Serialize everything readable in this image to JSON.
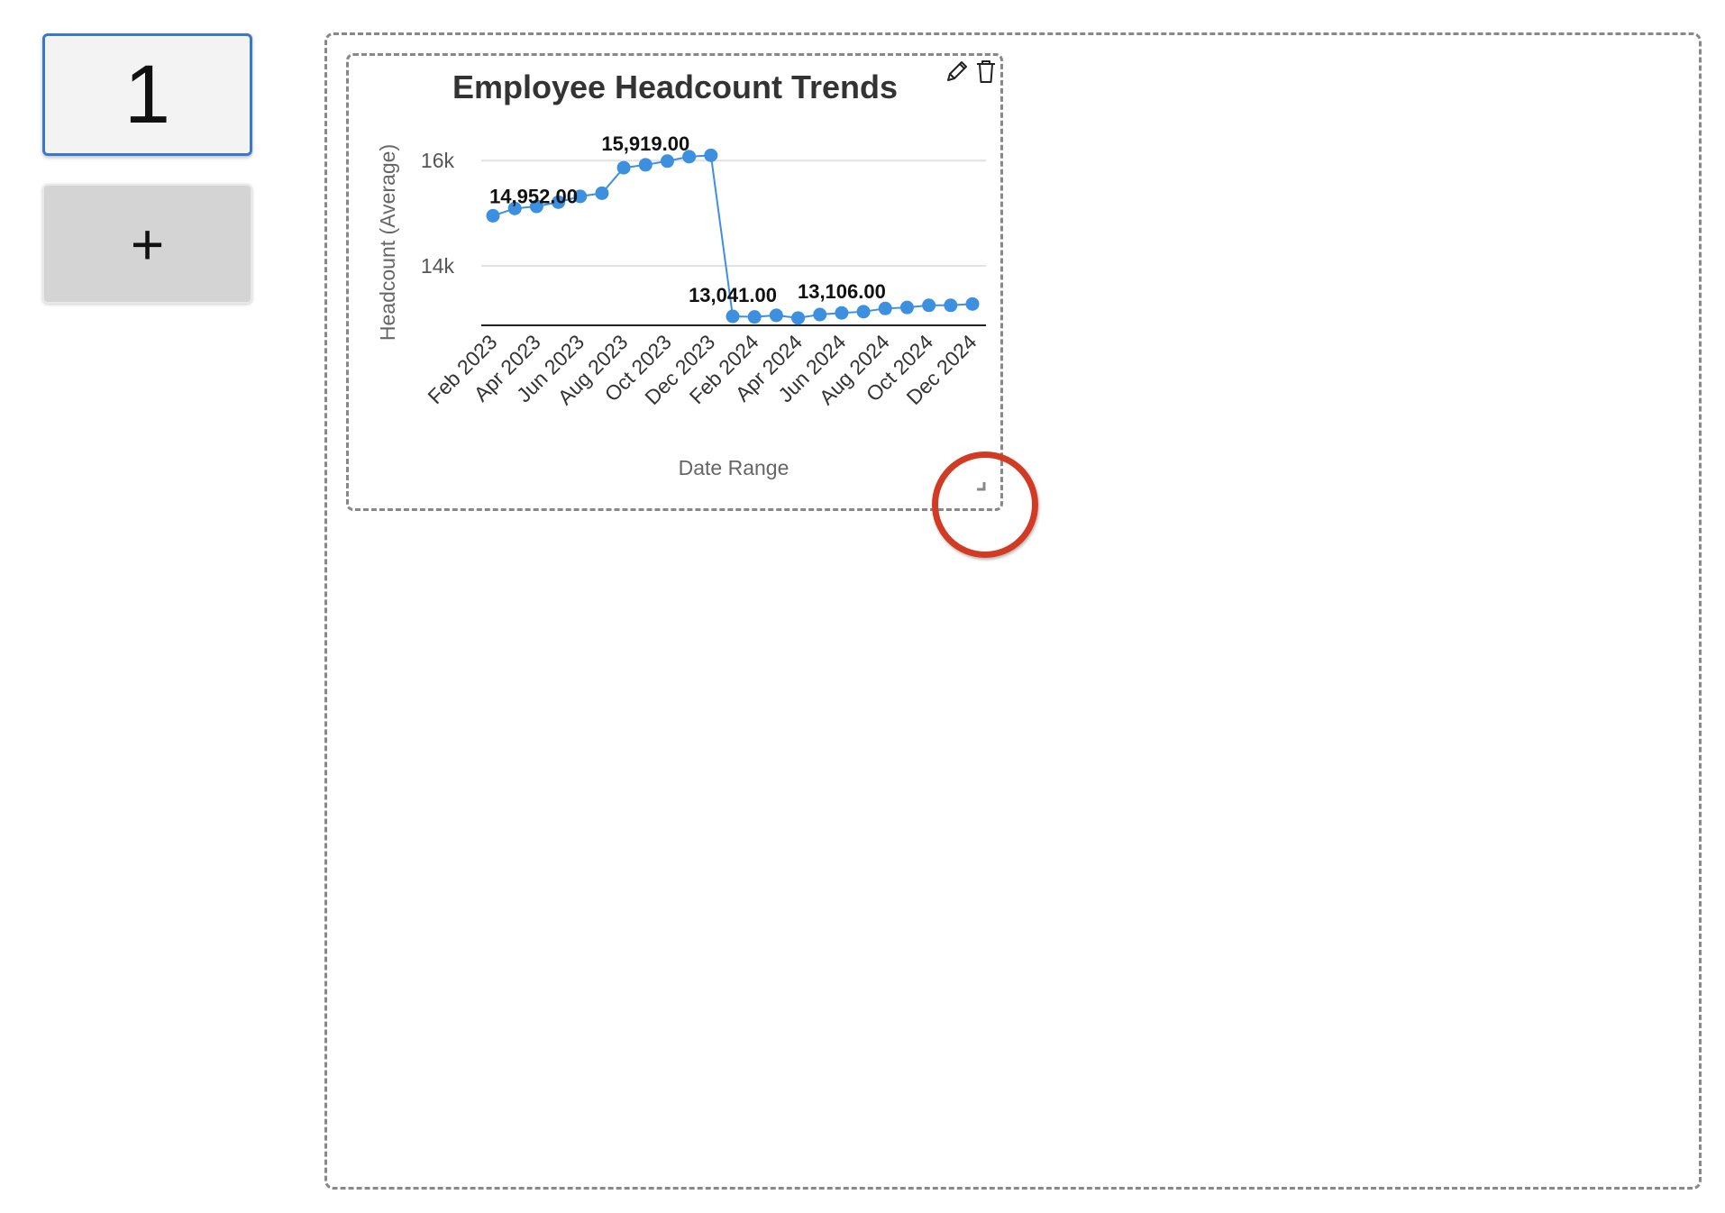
{
  "sidebar": {
    "page_button_label": "1",
    "add_page_label": "+"
  },
  "widget": {
    "edit_icon": "pencil-icon",
    "delete_icon": "trash-icon",
    "resize_icon": "resize-handle-icon"
  },
  "colors": {
    "series": "#3d8fe0",
    "highlight": "#d13b24",
    "active_border": "#3a78cf"
  },
  "chart_data": {
    "type": "line",
    "title": "Employee Headcount Trends",
    "xlabel": "Date Range",
    "ylabel": "Headcount (Average)",
    "x": [
      "Feb 2023",
      "Mar 2023",
      "Apr 2023",
      "May 2023",
      "Jun 2023",
      "Jul 2023",
      "Aug 2023",
      "Sep 2023",
      "Oct 2023",
      "Nov 2023",
      "Dec 2023",
      "Jan 2024",
      "Feb 2024",
      "Mar 2024",
      "Apr 2024",
      "May 2024",
      "Jun 2024",
      "Jul 2024",
      "Aug 2024",
      "Sep 2024",
      "Oct 2024",
      "Nov 2024",
      "Dec 2024"
    ],
    "x_tick_labels": [
      "Feb 2023",
      "Apr 2023",
      "Jun 2023",
      "Aug 2023",
      "Oct 2023",
      "Dec 2023",
      "Feb 2024",
      "Apr 2024",
      "Jun 2024",
      "Aug 2024",
      "Oct 2024",
      "Dec 2024"
    ],
    "values": [
      14952,
      15090,
      15130,
      15210,
      15320,
      15380,
      15865,
      15919,
      15990,
      16075,
      16100,
      13041,
      13030,
      13060,
      13010,
      13075,
      13106,
      13130,
      13190,
      13210,
      13250,
      13250,
      13275
    ],
    "data_labels": [
      {
        "index": 0,
        "text": "14,952.00"
      },
      {
        "index": 7,
        "text": "15,919.00"
      },
      {
        "index": 11,
        "text": "13,041.00"
      },
      {
        "index": 16,
        "text": "13,106.00"
      }
    ],
    "y_ticks": [
      {
        "value": 14000,
        "label": "14k"
      },
      {
        "value": 16000,
        "label": "16k"
      }
    ],
    "ylim": [
      12870,
      16500
    ],
    "grid": true,
    "legend": "none"
  }
}
